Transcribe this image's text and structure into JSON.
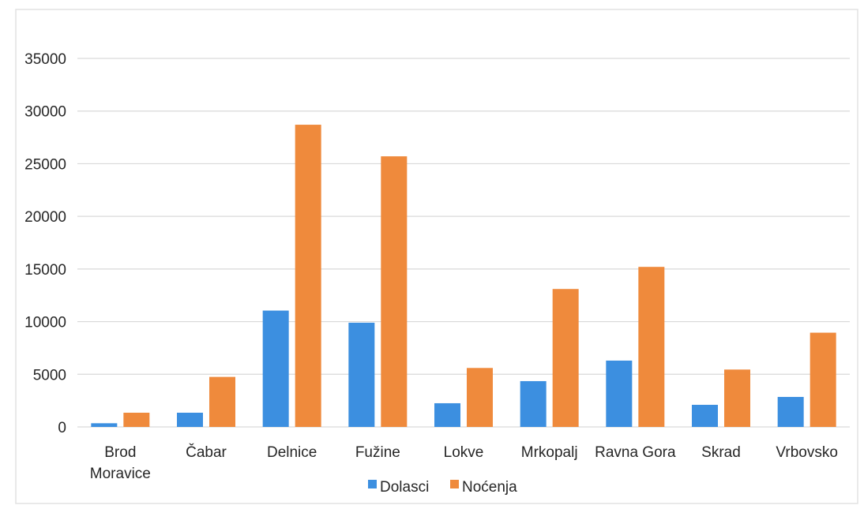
{
  "chart_data": {
    "type": "bar",
    "categories": [
      "Brod Moravice",
      "Čabar",
      "Delnice",
      "Fužine",
      "Lokve",
      "Mrkopalj",
      "Ravna Gora",
      "Skrad",
      "Vrbovsko"
    ],
    "series": [
      {
        "name": "Dolasci",
        "color": "#3c8fe0",
        "values": [
          350,
          1350,
          11050,
          9900,
          2250,
          4350,
          6300,
          2100,
          2850
        ]
      },
      {
        "name": "Noćenja",
        "color": "#ef8a3c",
        "values": [
          1350,
          4750,
          28700,
          25700,
          5600,
          13100,
          15200,
          5450,
          8950
        ]
      }
    ],
    "ylim": [
      0,
      35000
    ],
    "yticks": [
      0,
      5000,
      10000,
      15000,
      20000,
      25000,
      30000,
      35000
    ],
    "title": "",
    "xlabel": "",
    "ylabel": "",
    "legend_position": "bottom",
    "grid": true
  }
}
